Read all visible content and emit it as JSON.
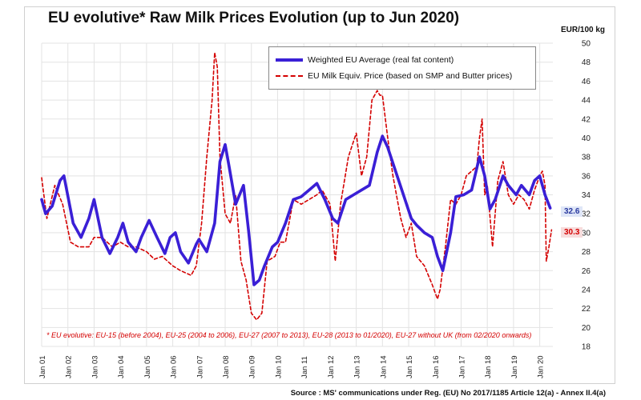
{
  "chart_data": {
    "type": "line",
    "title": "EU evolutive* Raw Milk Prices Evolution (up to Jun 2020)",
    "ylabel": "EUR/100 kg",
    "ylim": [
      18,
      50
    ],
    "yticks": [
      18,
      20,
      22,
      24,
      26,
      28,
      30,
      32,
      34,
      36,
      38,
      40,
      42,
      44,
      46,
      48,
      50
    ],
    "xrange": [
      2001,
      2020.5
    ],
    "categories": [
      "Jan 01",
      "Jan 02",
      "Jan 03",
      "Jan 04",
      "Jan 05",
      "Jan 06",
      "Jan 07",
      "Jan 08",
      "Jan 09",
      "Jan 10",
      "Jan 11",
      "Jan 12",
      "Jan 13",
      "Jan 14",
      "Jan 15",
      "Jan 16",
      "Jan 17",
      "Jan 18",
      "Jan 19",
      "Jan 20"
    ],
    "series": [
      {
        "name": "Weighted EU Average (real fat content)",
        "color": "#3a1fd6",
        "style": "solid",
        "x": [
          2001.0,
          2001.15,
          2001.4,
          2001.7,
          2001.85,
          2002.2,
          2002.5,
          2002.8,
          2003.0,
          2003.3,
          2003.6,
          2003.9,
          2004.1,
          2004.3,
          2004.6,
          2004.8,
          2005.1,
          2005.4,
          2005.7,
          2005.9,
          2006.1,
          2006.3,
          2006.6,
          2006.9,
          2007.0,
          2007.3,
          2007.6,
          2007.8,
          2008.0,
          2008.15,
          2008.4,
          2008.7,
          2008.9,
          2009.1,
          2009.3,
          2009.5,
          2009.8,
          2010.0,
          2010.3,
          2010.6,
          2010.9,
          2011.2,
          2011.5,
          2011.8,
          2012.1,
          2012.3,
          2012.6,
          2012.9,
          2013.2,
          2013.5,
          2013.8,
          2014.0,
          2014.2,
          2014.5,
          2014.8,
          2015.1,
          2015.3,
          2015.6,
          2015.9,
          2016.1,
          2016.3,
          2016.6,
          2016.8,
          2017.1,
          2017.4,
          2017.7,
          2017.9,
          2018.1,
          2018.3,
          2018.6,
          2018.8,
          2019.1,
          2019.3,
          2019.6,
          2019.8,
          2020.0,
          2020.2,
          2020.4
        ],
        "y": [
          33.5,
          32.0,
          32.8,
          35.5,
          36.0,
          31.0,
          29.5,
          31.5,
          33.5,
          29.5,
          27.8,
          29.5,
          31.0,
          29.0,
          28.0,
          29.5,
          31.3,
          29.5,
          27.8,
          29.5,
          30.0,
          28.0,
          26.8,
          28.8,
          29.3,
          28.0,
          31.0,
          37.5,
          39.3,
          37.0,
          33.0,
          35.0,
          30.0,
          24.5,
          25.0,
          26.5,
          28.5,
          29.0,
          31.0,
          33.5,
          33.8,
          34.5,
          35.2,
          33.5,
          31.5,
          31.0,
          33.5,
          34.0,
          34.5,
          35.0,
          38.5,
          40.2,
          39.0,
          36.5,
          34.0,
          31.5,
          30.8,
          30.0,
          29.5,
          27.5,
          26.0,
          30.0,
          33.8,
          34.0,
          34.5,
          38.0,
          36.0,
          32.5,
          33.5,
          36.0,
          35.0,
          34.0,
          35.0,
          34.0,
          35.5,
          36.0,
          34.0,
          32.6
        ]
      },
      {
        "name": "EU Milk Equiv. Price (based on SMP and Butter prices)",
        "color": "#d40000",
        "style": "dashed",
        "x": [
          2001.0,
          2001.2,
          2001.5,
          2001.8,
          2002.1,
          2002.4,
          2002.8,
          2003.0,
          2003.3,
          2003.7,
          2004.0,
          2004.3,
          2004.6,
          2005.0,
          2005.3,
          2005.6,
          2006.0,
          2006.3,
          2006.7,
          2006.9,
          2007.1,
          2007.3,
          2007.5,
          2007.6,
          2007.7,
          2007.8,
          2008.0,
          2008.2,
          2008.4,
          2008.6,
          2008.8,
          2009.0,
          2009.2,
          2009.4,
          2009.6,
          2009.9,
          2010.1,
          2010.3,
          2010.6,
          2010.9,
          2011.2,
          2011.5,
          2011.7,
          2012.0,
          2012.2,
          2012.4,
          2012.7,
          2013.0,
          2013.2,
          2013.4,
          2013.6,
          2013.8,
          2013.9,
          2014.0,
          2014.2,
          2014.4,
          2014.7,
          2014.9,
          2015.1,
          2015.3,
          2015.6,
          2015.9,
          2016.1,
          2016.2,
          2016.4,
          2016.6,
          2016.8,
          2017.0,
          2017.2,
          2017.4,
          2017.6,
          2017.7,
          2017.8,
          2017.9,
          2018.0,
          2018.2,
          2018.4,
          2018.6,
          2018.8,
          2019.0,
          2019.2,
          2019.4,
          2019.6,
          2019.8,
          2020.0,
          2020.1,
          2020.2,
          2020.25,
          2020.35,
          2020.45
        ],
        "y": [
          35.8,
          31.5,
          35.0,
          33.0,
          29.0,
          28.5,
          28.5,
          29.5,
          29.5,
          28.5,
          29.0,
          28.5,
          28.5,
          28.0,
          27.2,
          27.5,
          26.5,
          26.0,
          25.5,
          26.5,
          31.0,
          38.0,
          44.0,
          49.0,
          47.5,
          38.0,
          32.0,
          31.0,
          34.0,
          27.0,
          25.0,
          21.5,
          20.8,
          21.5,
          27.0,
          27.5,
          29.0,
          29.0,
          33.5,
          33.0,
          33.5,
          34.0,
          34.5,
          33.0,
          27.0,
          33.0,
          38.0,
          40.5,
          36.0,
          38.0,
          44.0,
          45.0,
          44.5,
          44.5,
          40.0,
          36.0,
          31.5,
          29.5,
          31.0,
          27.5,
          26.5,
          24.5,
          23.0,
          24.0,
          28.5,
          33.5,
          33.0,
          34.0,
          36.0,
          36.5,
          37.0,
          40.0,
          42.0,
          34.0,
          35.0,
          28.5,
          35.5,
          37.5,
          34.0,
          33.0,
          34.0,
          33.5,
          32.5,
          34.5,
          36.0,
          36.5,
          35.0,
          27.0,
          28.5,
          30.3
        ]
      }
    ],
    "last_values": {
      "avg": "32.6",
      "equiv": "30.3"
    },
    "footnote": "* EU evolutive: EU-15 (before 2004), EU-25 (2004 to 2006), EU-27 (2007 to 2013), EU-28 (2013 to 01/2020), EU-27 without  UK (from 02/2020 onwards)",
    "source": "Source : MS' communications under Reg. (EU) No 2017/1185 Article 12(a) - Annex II.4(a)"
  }
}
